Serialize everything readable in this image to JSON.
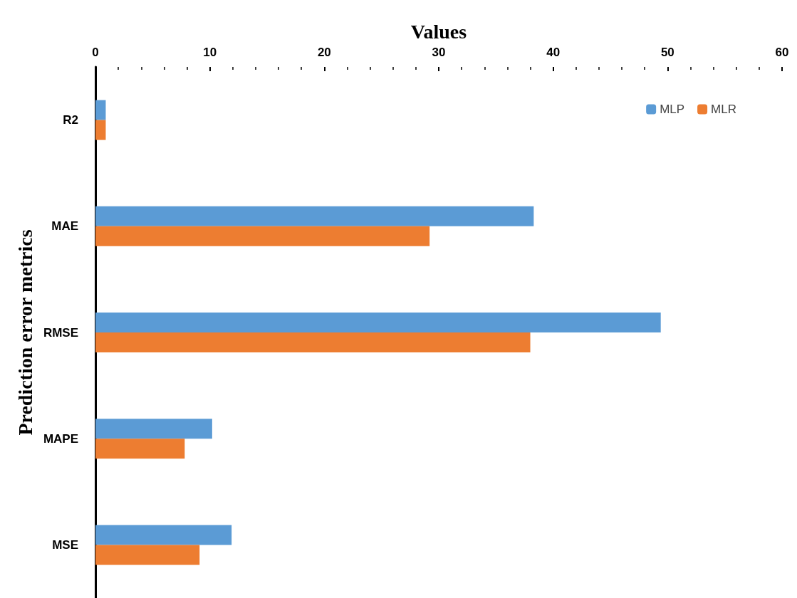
{
  "chart_data": {
    "type": "bar",
    "orientation": "horizontal",
    "xlabel": "Values",
    "ylabel": "Prediction error metrics",
    "categories": [
      "R2",
      "MAE",
      "RMSE",
      "MAPE",
      "MSE"
    ],
    "series": [
      {
        "name": "MLP",
        "color": "#5b9bd5",
        "values": [
          0.9,
          38.3,
          49.4,
          10.2,
          11.9
        ]
      },
      {
        "name": "MLR",
        "color": "#ed7d31",
        "values": [
          0.9,
          29.2,
          38.0,
          7.8,
          9.1
        ]
      }
    ],
    "xlim": [
      0,
      60
    ],
    "xticks": [
      0,
      10,
      20,
      30,
      40,
      50,
      60
    ],
    "grid": false,
    "legend": "top right"
  }
}
